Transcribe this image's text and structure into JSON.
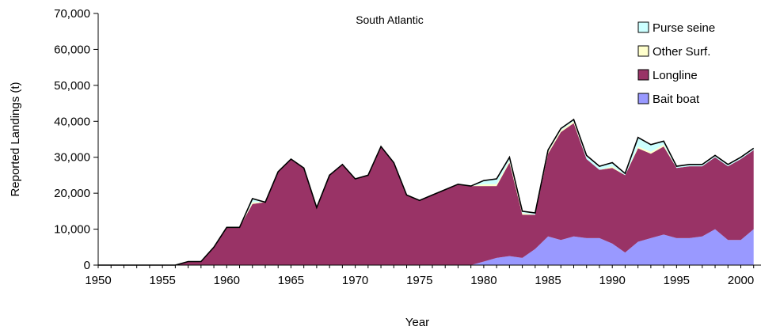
{
  "chart_data": {
    "type": "area",
    "stacked": true,
    "title": "South Atlantic",
    "xlabel": "Year",
    "ylabel": "Reported Landings (t)",
    "xlim": [
      1950,
      2001
    ],
    "ylim": [
      0,
      70000
    ],
    "x_ticks": [
      "1950",
      "1955",
      "1960",
      "1965",
      "1970",
      "1975",
      "1980",
      "1985",
      "1990",
      "1995",
      "2000"
    ],
    "y_ticks": [
      "0",
      "10,000",
      "20,000",
      "30,000",
      "40,000",
      "50,000",
      "60,000",
      "70,000"
    ],
    "grid": false,
    "legend_position": "top-right",
    "x": [
      1950,
      1951,
      1952,
      1953,
      1954,
      1955,
      1956,
      1957,
      1958,
      1959,
      1960,
      1961,
      1962,
      1963,
      1964,
      1965,
      1966,
      1967,
      1968,
      1969,
      1970,
      1971,
      1972,
      1973,
      1974,
      1975,
      1976,
      1977,
      1978,
      1979,
      1980,
      1981,
      1982,
      1983,
      1984,
      1985,
      1986,
      1987,
      1988,
      1989,
      1990,
      1991,
      1992,
      1993,
      1994,
      1995,
      1996,
      1997,
      1998,
      1999,
      2000,
      2001
    ],
    "series": [
      {
        "name": "Bait boat",
        "color": "#9999ff",
        "values": [
          0,
          0,
          0,
          0,
          0,
          0,
          0,
          0,
          0,
          0,
          0,
          0,
          0,
          0,
          0,
          0,
          0,
          0,
          0,
          0,
          0,
          0,
          0,
          0,
          0,
          0,
          0,
          0,
          0,
          0,
          1000,
          2000,
          2500,
          2000,
          4500,
          8000,
          7000,
          8000,
          7500,
          7500,
          6000,
          3500,
          6500,
          7500,
          8500,
          7500,
          7500,
          8000,
          10000,
          7000,
          7000,
          10000
        ]
      },
      {
        "name": "Longline",
        "color": "#993366",
        "values": [
          0,
          0,
          0,
          0,
          0,
          0,
          0,
          1000,
          1000,
          5000,
          10500,
          10500,
          17000,
          17500,
          26000,
          29500,
          27000,
          16000,
          25000,
          28000,
          24000,
          25000,
          33000,
          28500,
          19500,
          18000,
          19500,
          21000,
          22500,
          22000,
          21000,
          20000,
          26000,
          12000,
          9500,
          23000,
          30000,
          31500,
          22000,
          19000,
          21000,
          21500,
          26000,
          23500,
          24500,
          19500,
          20000,
          19500,
          20000,
          20500,
          22500,
          22000
        ]
      },
      {
        "name": "Other Surf.",
        "color": "#ffffcc",
        "values": [
          0,
          0,
          0,
          0,
          0,
          0,
          0,
          0,
          0,
          0,
          0,
          0,
          500,
          0,
          0,
          0,
          0,
          0,
          0,
          0,
          0,
          0,
          0,
          0,
          0,
          0,
          0,
          0,
          0,
          0,
          500,
          500,
          500,
          500,
          0,
          500,
          500,
          500,
          0,
          0,
          500,
          0,
          500,
          500,
          500,
          0,
          0,
          0,
          0,
          0,
          0,
          0
        ]
      },
      {
        "name": "Purse seine",
        "color": "#ccffff",
        "values": [
          0,
          0,
          0,
          0,
          0,
          0,
          0,
          0,
          0,
          0,
          0,
          0,
          1000,
          0,
          0,
          0,
          0,
          0,
          0,
          0,
          0,
          0,
          0,
          0,
          0,
          0,
          0,
          0,
          0,
          0,
          1000,
          1500,
          1000,
          500,
          500,
          500,
          500,
          500,
          1000,
          1000,
          1000,
          500,
          2500,
          2000,
          1000,
          500,
          500,
          500,
          500,
          500,
          500,
          500
        ]
      }
    ]
  }
}
